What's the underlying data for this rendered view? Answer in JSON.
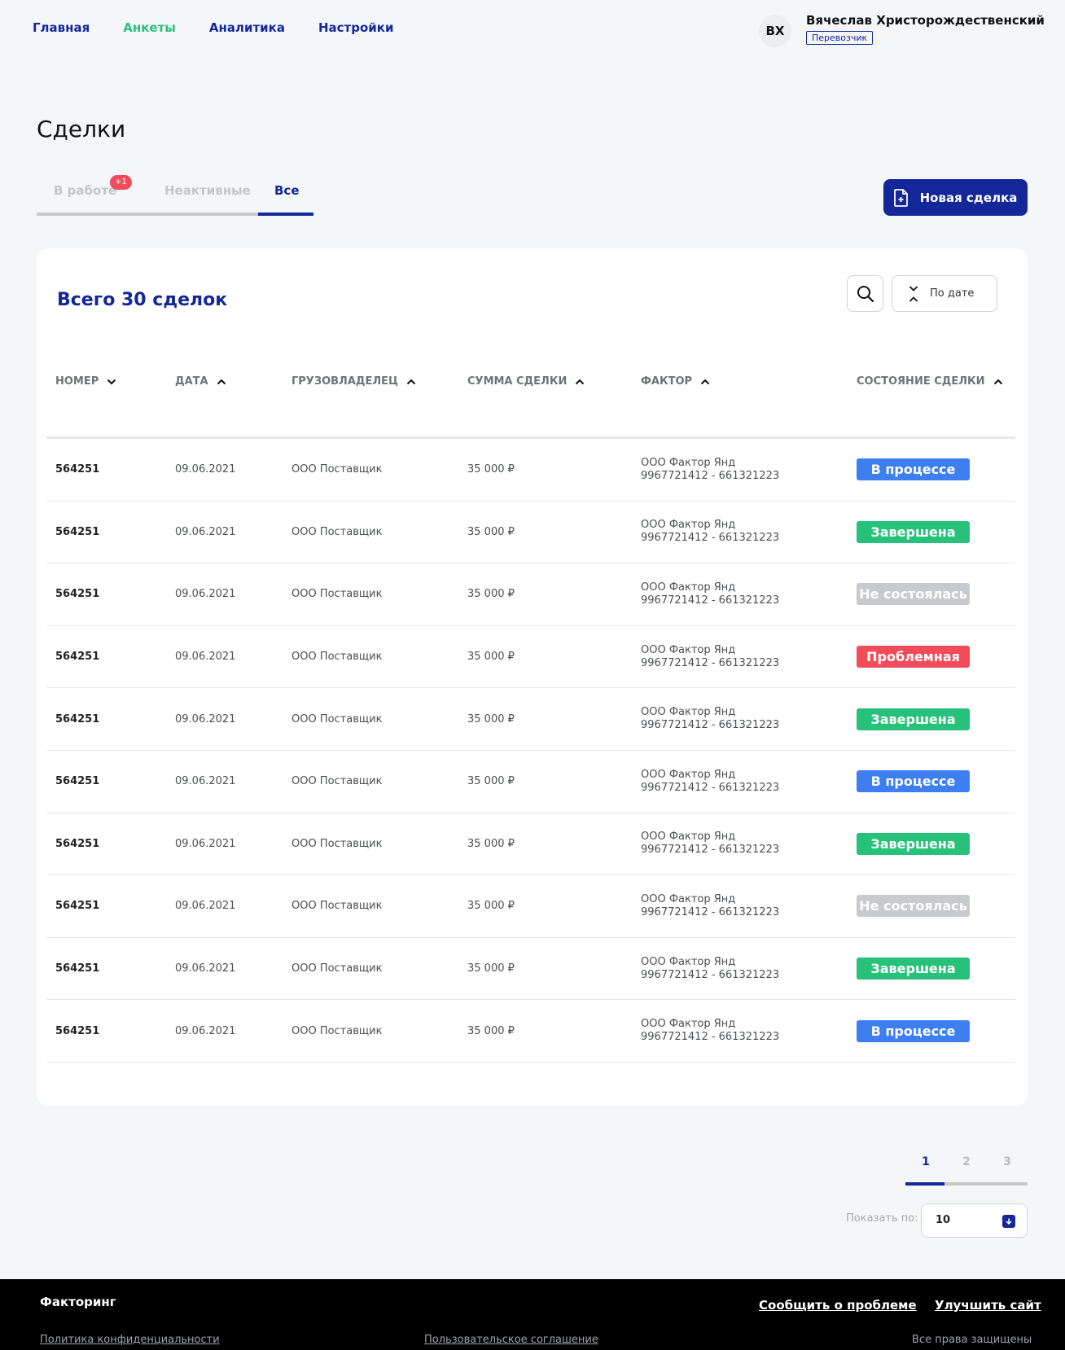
{
  "nav": {
    "items": [
      {
        "label": "Главная",
        "active": false
      },
      {
        "label": "Анкеты",
        "active": true
      },
      {
        "label": "Аналитика",
        "active": false
      },
      {
        "label": "Настройки",
        "active": false
      }
    ]
  },
  "user": {
    "initials": "ВХ",
    "name": "Вячеслав  Христорождественский",
    "role": "Перевозчик"
  },
  "page": {
    "title": "Сделки",
    "tabs": [
      {
        "label": "В работе",
        "badge": "+1"
      },
      {
        "label": "Неактивные"
      },
      {
        "label": "Все",
        "active": true
      }
    ],
    "new_deal_label": "Новая сделка"
  },
  "deals": {
    "total_label": "Всего 30 сделок",
    "sort_label": "По дате",
    "columns": [
      {
        "label": "Номер",
        "sort": "desc"
      },
      {
        "label": "Дата",
        "sort": "asc"
      },
      {
        "label": "Грузовладелец",
        "sort": "asc"
      },
      {
        "label": "Сумма сделки",
        "sort": "asc"
      },
      {
        "label": "Фактор",
        "sort": "asc"
      },
      {
        "label": "Состояние сделки",
        "sort": "asc"
      }
    ],
    "rows": [
      {
        "number": "564251",
        "date": "09.06.2021",
        "owner": "ООО Поставщик",
        "amount": "35 000 ₽",
        "factor_name": "ООО Фактор Янд",
        "factor_ids": "9967721412 - 661321223",
        "status": "В процессе",
        "status_color": "#3d7ff0"
      },
      {
        "number": "564251",
        "date": "09.06.2021",
        "owner": "ООО Поставщик",
        "amount": "35 000 ₽",
        "factor_name": "ООО Фактор Янд",
        "factor_ids": "9967721412 - 661321223",
        "status": "Завершена",
        "status_color": "#27c27a"
      },
      {
        "number": "564251",
        "date": "09.06.2021",
        "owner": "ООО Поставщик",
        "amount": "35 000 ₽",
        "factor_name": "ООО Фактор Янд",
        "factor_ids": "9967721412 - 661321223",
        "status": "Не состоялась",
        "status_color": "#c9cacd"
      },
      {
        "number": "564251",
        "date": "09.06.2021",
        "owner": "ООО Поставщик",
        "amount": "35 000 ₽",
        "factor_name": "ООО Фактор Янд",
        "factor_ids": "9967721412 - 661321223",
        "status": "Проблемная",
        "status_color": "#f04c5a"
      },
      {
        "number": "564251",
        "date": "09.06.2021",
        "owner": "ООО Поставщик",
        "amount": "35 000 ₽",
        "factor_name": "ООО Фактор Янд",
        "factor_ids": "9967721412 - 661321223",
        "status": "Завершена",
        "status_color": "#27c27a"
      },
      {
        "number": "564251",
        "date": "09.06.2021",
        "owner": "ООО Поставщик",
        "amount": "35 000 ₽",
        "factor_name": "ООО Фактор Янд",
        "factor_ids": "9967721412 - 661321223",
        "status": "В процессе",
        "status_color": "#3d7ff0"
      },
      {
        "number": "564251",
        "date": "09.06.2021",
        "owner": "ООО Поставщик",
        "amount": "35 000 ₽",
        "factor_name": "ООО Фактор Янд",
        "factor_ids": "9967721412 - 661321223",
        "status": "Завершена",
        "status_color": "#27c27a"
      },
      {
        "number": "564251",
        "date": "09.06.2021",
        "owner": "ООО Поставщик",
        "amount": "35 000 ₽",
        "factor_name": "ООО Фактор Янд",
        "factor_ids": "9967721412 - 661321223",
        "status": "Не состоялась",
        "status_color": "#c9cacd"
      },
      {
        "number": "564251",
        "date": "09.06.2021",
        "owner": "ООО Поставщик",
        "amount": "35 000 ₽",
        "factor_name": "ООО Фактор Янд",
        "factor_ids": "9967721412 - 661321223",
        "status": "Завершена",
        "status_color": "#27c27a"
      },
      {
        "number": "564251",
        "date": "09.06.2021",
        "owner": "ООО Поставщик",
        "amount": "35 000 ₽",
        "factor_name": "ООО Фактор Янд",
        "factor_ids": "9967721412 - 661321223",
        "status": "В процессе",
        "status_color": "#3d7ff0"
      }
    ]
  },
  "pagination": {
    "pages": [
      "1",
      "2",
      "3"
    ],
    "current": "1",
    "per_page_label": "Показать по:",
    "per_page_value": "10"
  },
  "footer": {
    "brand": "Факторинг",
    "report_link": "Сообщить о проблеме",
    "improve_link": "Улучшить сайт",
    "privacy_link": "Политика конфиденциальности",
    "agreement_link": "Пользовательское соглашение",
    "rights": "Все права защищены"
  },
  "colors": {
    "brand": "#13279b",
    "accent_green": "#27c27a",
    "status_blue": "#3d7ff0",
    "status_red": "#f04c5a",
    "status_gray": "#c9cacd"
  }
}
